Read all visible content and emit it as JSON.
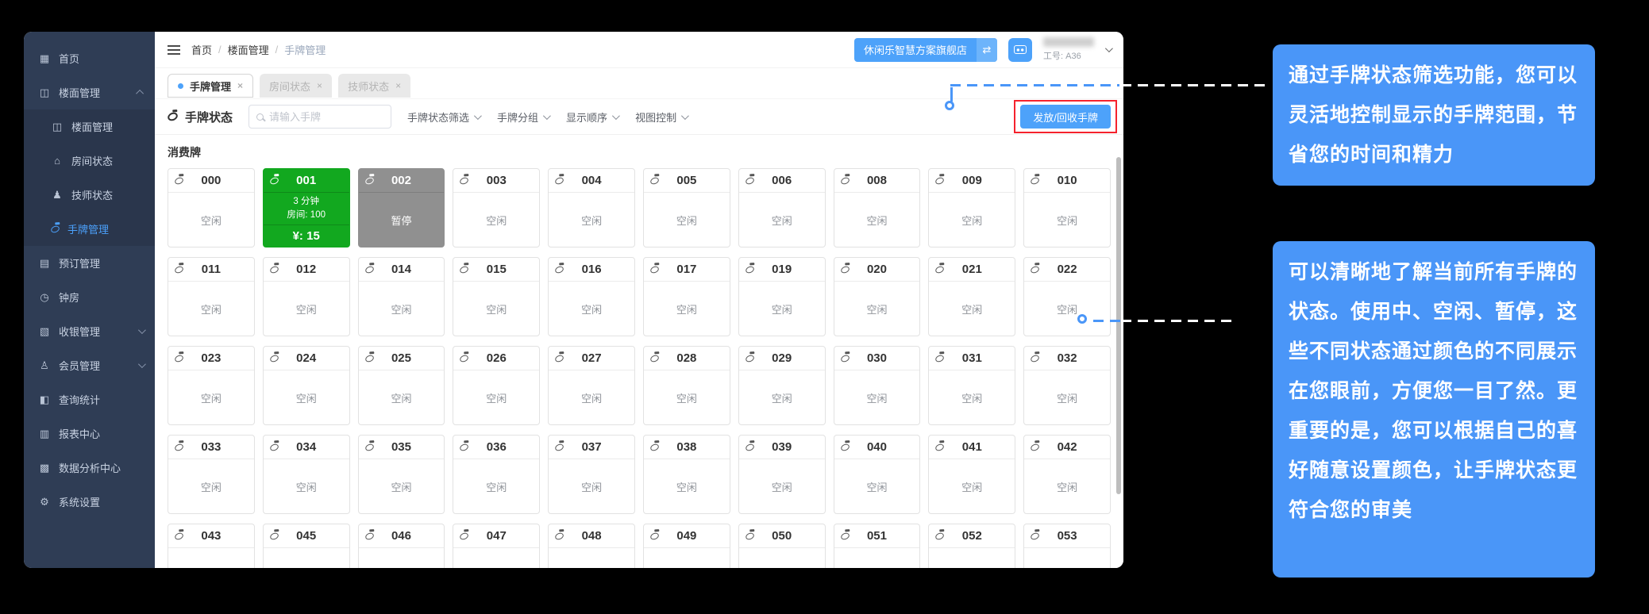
{
  "colors": {
    "accent_blue": "#4da2fa",
    "callout_blue": "#4a96f8",
    "status_in_use_green": "#12a81f",
    "status_paused_gray": "#909090",
    "sidebar_bg": "#2f3d55",
    "sidebar_active": "#4ba0fa",
    "highlight_red": "#f5222d"
  },
  "icons": {
    "home": "▦",
    "floor": "◫",
    "floor_sub": "◫",
    "room": "⌂",
    "technician": "♟",
    "booking": "▤",
    "clock": "◷",
    "cashier": "▧",
    "member": "♙",
    "stats": "◧",
    "report": "▥",
    "data": "▩",
    "settings": "⚙",
    "swap": "⇄",
    "close": "×"
  },
  "sidebar": {
    "items": [
      {
        "key": "home",
        "icon": "home",
        "label": "首页"
      },
      {
        "key": "floor-management",
        "icon": "floor",
        "label": "楼面管理",
        "chevron": "up"
      },
      {
        "key": "floor-management-sub",
        "icon": "floor_sub",
        "label": "楼面管理",
        "sub": true
      },
      {
        "key": "room-status",
        "icon": "room",
        "label": "房间状态",
        "sub": true
      },
      {
        "key": "technician-status",
        "icon": "technician",
        "label": "技师状态",
        "sub": true
      },
      {
        "key": "tag-management",
        "icon": "tag",
        "label": "手牌管理",
        "sub": true,
        "active": true
      },
      {
        "key": "booking",
        "icon": "booking",
        "label": "预订管理"
      },
      {
        "key": "clock-room",
        "icon": "clock",
        "label": "钟房"
      },
      {
        "key": "cashier",
        "icon": "cashier",
        "label": "收银管理",
        "chevron": "down"
      },
      {
        "key": "member",
        "icon": "member",
        "label": "会员管理",
        "chevron": "down"
      },
      {
        "key": "query-stats",
        "icon": "stats",
        "label": "查询统计"
      },
      {
        "key": "report-center",
        "icon": "report",
        "label": "报表中心"
      },
      {
        "key": "data-center",
        "icon": "data",
        "label": "数据分析中心"
      },
      {
        "key": "settings",
        "icon": "settings",
        "label": "系统设置"
      }
    ]
  },
  "breadcrumb": [
    "首页",
    "楼面管理",
    "手牌管理"
  ],
  "header": {
    "store_name": "休闲乐智慧方案旗舰店",
    "staff_id": "工号: A36"
  },
  "tabs": [
    {
      "label": "手牌管理",
      "active": true
    },
    {
      "label": "房间状态",
      "active": false
    },
    {
      "label": "技师状态",
      "active": false
    }
  ],
  "toolbar": {
    "title": "手牌状态",
    "search_placeholder": "请输入手牌",
    "filters": [
      "手牌状态筛选",
      "手牌分组",
      "显示顺序",
      "视图控制"
    ],
    "action_button": "发放/回收手牌"
  },
  "section_label": "消费牌",
  "status_labels": {
    "idle": "空闲",
    "paused": "暂停"
  },
  "cards": [
    {
      "num": "000",
      "status": "idle",
      "label": "空闲"
    },
    {
      "num": "001",
      "status": "in_use",
      "duration": "3 分钟",
      "room": "房间: 100",
      "amount": "¥: 15"
    },
    {
      "num": "002",
      "status": "paused",
      "label": "暂停"
    },
    {
      "num": "003",
      "status": "idle",
      "label": "空闲"
    },
    {
      "num": "004",
      "status": "idle",
      "label": "空闲"
    },
    {
      "num": "005",
      "status": "idle",
      "label": "空闲"
    },
    {
      "num": "006",
      "status": "idle",
      "label": "空闲"
    },
    {
      "num": "008",
      "status": "idle",
      "label": "空闲"
    },
    {
      "num": "009",
      "status": "idle",
      "label": "空闲"
    },
    {
      "num": "010",
      "status": "idle",
      "label": "空闲"
    },
    {
      "num": "011",
      "status": "idle",
      "label": "空闲"
    },
    {
      "num": "012",
      "status": "idle",
      "label": "空闲"
    },
    {
      "num": "014",
      "status": "idle",
      "label": "空闲"
    },
    {
      "num": "015",
      "status": "idle",
      "label": "空闲"
    },
    {
      "num": "016",
      "status": "idle",
      "label": "空闲"
    },
    {
      "num": "017",
      "status": "idle",
      "label": "空闲"
    },
    {
      "num": "019",
      "status": "idle",
      "label": "空闲"
    },
    {
      "num": "020",
      "status": "idle",
      "label": "空闲"
    },
    {
      "num": "021",
      "status": "idle",
      "label": "空闲"
    },
    {
      "num": "022",
      "status": "idle",
      "label": "空闲"
    },
    {
      "num": "023",
      "status": "idle",
      "label": "空闲"
    },
    {
      "num": "024",
      "status": "idle",
      "label": "空闲"
    },
    {
      "num": "025",
      "status": "idle",
      "label": "空闲"
    },
    {
      "num": "026",
      "status": "idle",
      "label": "空闲"
    },
    {
      "num": "027",
      "status": "idle",
      "label": "空闲"
    },
    {
      "num": "028",
      "status": "idle",
      "label": "空闲"
    },
    {
      "num": "029",
      "status": "idle",
      "label": "空闲"
    },
    {
      "num": "030",
      "status": "idle",
      "label": "空闲"
    },
    {
      "num": "031",
      "status": "idle",
      "label": "空闲"
    },
    {
      "num": "032",
      "status": "idle",
      "label": "空闲"
    },
    {
      "num": "033",
      "status": "idle",
      "label": "空闲"
    },
    {
      "num": "034",
      "status": "idle",
      "label": "空闲"
    },
    {
      "num": "035",
      "status": "idle",
      "label": "空闲"
    },
    {
      "num": "036",
      "status": "idle",
      "label": "空闲"
    },
    {
      "num": "037",
      "status": "idle",
      "label": "空闲"
    },
    {
      "num": "038",
      "status": "idle",
      "label": "空闲"
    },
    {
      "num": "039",
      "status": "idle",
      "label": "空闲"
    },
    {
      "num": "040",
      "status": "idle",
      "label": "空闲"
    },
    {
      "num": "041",
      "status": "idle",
      "label": "空闲"
    },
    {
      "num": "042",
      "status": "idle",
      "label": "空闲"
    },
    {
      "num": "043",
      "status": "idle",
      "label": ""
    },
    {
      "num": "045",
      "status": "idle",
      "label": ""
    },
    {
      "num": "046",
      "status": "idle",
      "label": ""
    },
    {
      "num": "047",
      "status": "idle",
      "label": ""
    },
    {
      "num": "048",
      "status": "idle",
      "label": ""
    },
    {
      "num": "049",
      "status": "idle",
      "label": ""
    },
    {
      "num": "050",
      "status": "idle",
      "label": ""
    },
    {
      "num": "051",
      "status": "idle",
      "label": ""
    },
    {
      "num": "052",
      "status": "idle",
      "label": ""
    },
    {
      "num": "053",
      "status": "idle",
      "label": ""
    }
  ],
  "callouts": [
    {
      "text": "通过手牌状态筛选功能，您可以灵活地控制显示的手牌范围，节省您的时间和精力"
    },
    {
      "text": "可以清晰地了解当前所有手牌的状态。使用中、空闲、暂停，这些不同状态通过颜色的不同展示在您眼前，方便您一目了然。更重要的是，您可以根据自己的喜好随意设置颜色，让手牌状态更符合您的审美"
    }
  ]
}
